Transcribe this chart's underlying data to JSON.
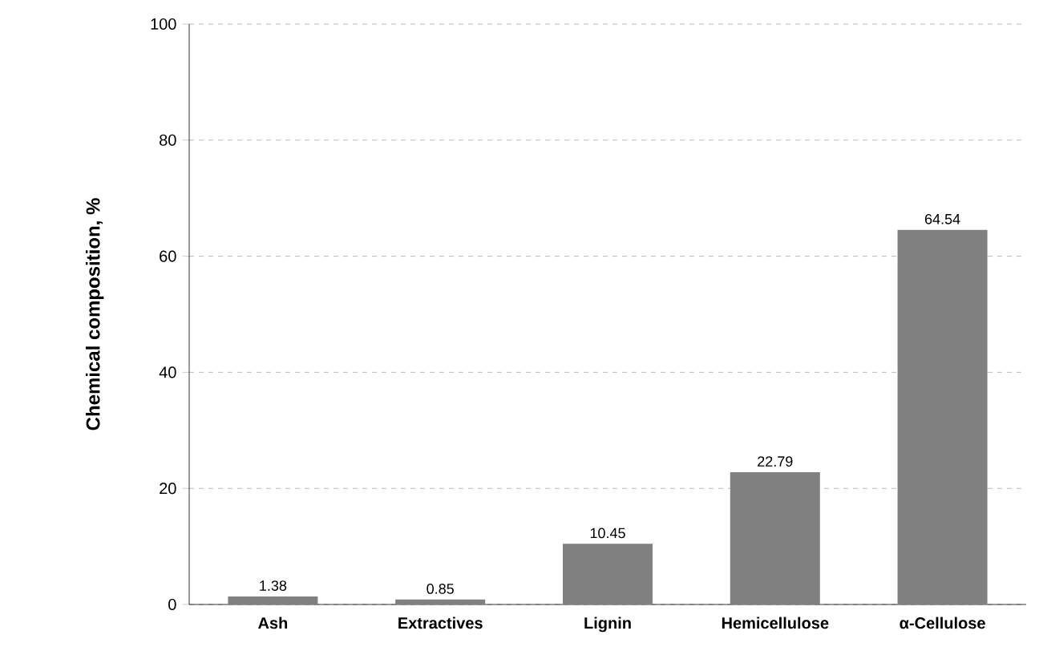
{
  "chart_data": {
    "type": "bar",
    "ylabel": "Chemical composition, %",
    "categories": [
      "Ash",
      "Extractives",
      "Lignin",
      "Hemicellulose",
      "α-Cellulose"
    ],
    "values": [
      1.38,
      0.85,
      10.45,
      22.79,
      64.54
    ],
    "color": "#808080",
    "ylim": [
      0,
      100
    ],
    "yticks": [
      0,
      20,
      40,
      60,
      80,
      100
    ],
    "grid": "y",
    "data_labels": true
  }
}
